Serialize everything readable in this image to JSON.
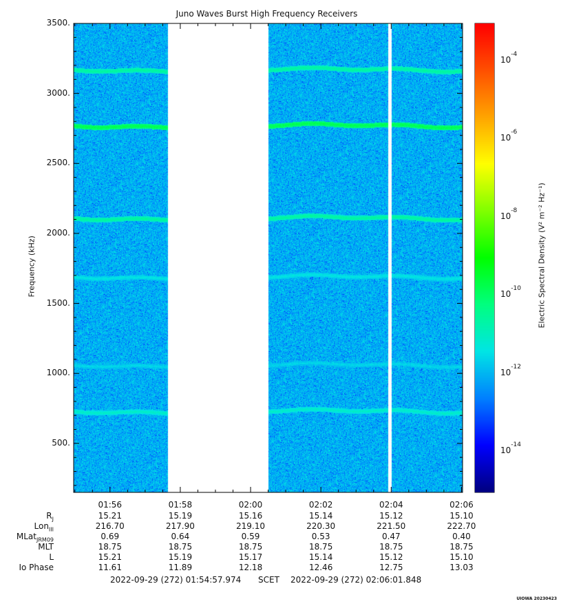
{
  "title": "Juno Waves Burst High Frequency Receivers",
  "y_axis": {
    "label": "Frequency (kHz)",
    "ticks": [
      "3500.",
      "3000.",
      "2500.",
      "2000.",
      "1500.",
      "1000.",
      "500."
    ]
  },
  "x_axis": {
    "ticks": [
      "01:56",
      "01:58",
      "02:00",
      "02:02",
      "02:04",
      "02:06"
    ]
  },
  "colorbar": {
    "label": "Electric Spectral Density (V² m⁻² Hz⁻¹)",
    "ticks": [
      "10-4",
      "10-6",
      "10-8",
      "10-10",
      "10-12",
      "10-14"
    ],
    "colors": [
      "#000080",
      "#0000ff",
      "#0080ff",
      "#00e5e5",
      "#00ff80",
      "#00ff00",
      "#80ff00",
      "#ffff00",
      "#ffa500",
      "#ff5000",
      "#ff0000"
    ]
  },
  "ephemeris": {
    "rows": [
      {
        "label": "R",
        "sub": "J",
        "values": [
          "15.21",
          "15.19",
          "15.16",
          "15.14",
          "15.12",
          "15.10"
        ]
      },
      {
        "label": "Lon",
        "sub": "III",
        "values": [
          "216.70",
          "217.90",
          "219.10",
          "220.30",
          "221.50",
          "222.70"
        ]
      },
      {
        "label": "MLat",
        "sub": "JRM09",
        "values": [
          "0.69",
          "0.64",
          "0.59",
          "0.53",
          "0.47",
          "0.40"
        ]
      },
      {
        "label": "MLT",
        "sub": "",
        "values": [
          "18.75",
          "18.75",
          "18.75",
          "18.75",
          "18.75",
          "18.75"
        ]
      },
      {
        "label": "L",
        "sub": "",
        "values": [
          "15.21",
          "15.19",
          "15.17",
          "15.14",
          "15.12",
          "15.10"
        ]
      },
      {
        "label": "Io Phase",
        "sub": "",
        "values": [
          "11.61",
          "11.89",
          "12.18",
          "12.46",
          "12.75",
          "13.03"
        ]
      }
    ]
  },
  "footer": {
    "start": "2022-09-29 (272) 01:54:57.974",
    "mid": "SCET",
    "end": "2022-09-29 (272) 02:06:01.848"
  },
  "credit": "UIOWA 20230423",
  "chart_data": {
    "type": "heatmap",
    "title": "Juno Waves Burst High Frequency Receivers",
    "xlabel": "",
    "ylabel": "Frequency (kHz)",
    "x_range": [
      "01:54:57.974",
      "02:06:01.848"
    ],
    "ylim": [
      150,
      3500
    ],
    "color_scale": "log",
    "color_range": [
      1e-15,
      0.001
    ],
    "background_level": 1e-12,
    "data_gaps": [
      [
        "01:57:38",
        "02:00:30"
      ],
      [
        "02:03:54",
        "02:04:00"
      ]
    ],
    "emission_lines": [
      {
        "frequency_khz": 3170,
        "level": 3e-11
      },
      {
        "frequency_khz": 2770,
        "level": 2e-10
      },
      {
        "frequency_khz": 2110,
        "level": 3e-11
      },
      {
        "frequency_khz": 1690,
        "level": 5e-12
      },
      {
        "frequency_khz": 1060,
        "level": 3e-12
      },
      {
        "frequency_khz": 730,
        "level": 1e-11
      }
    ]
  }
}
